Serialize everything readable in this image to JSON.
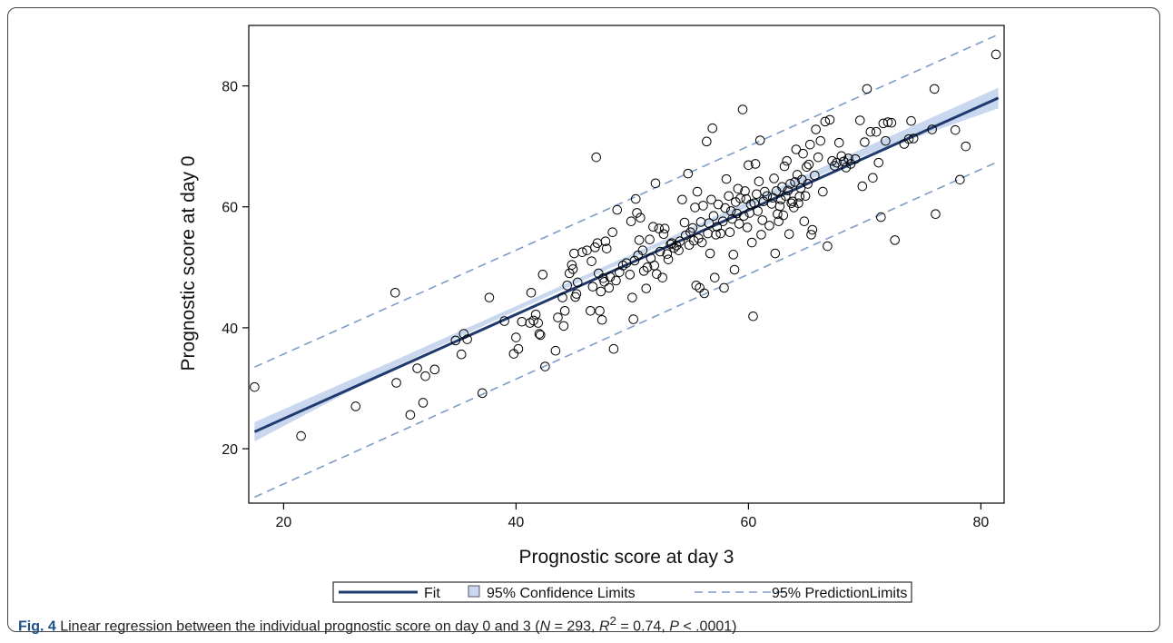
{
  "caption": {
    "fig_label": "Fig. 4",
    "text_before_n": " Linear regression between the individual prognostic score on day 0 and 3 (",
    "n_symbol": "N",
    "n_value": " = 293, ",
    "r_symbol": "R",
    "r_sup": "2",
    "r_value": " = 0.74, ",
    "p_symbol": "P",
    "p_value": " < .0001)"
  },
  "colors": {
    "fit_line": "#1f3a6e",
    "confidence_band": "#c9d8ee",
    "prediction_line": "#7e9cc9",
    "marker_stroke": "#000000"
  },
  "chart_data": {
    "type": "scatter",
    "xlabel": "Prognostic score at day 3",
    "ylabel": "Prognostic score at day 0",
    "xlim": [
      17,
      82
    ],
    "ylim": [
      11,
      90
    ],
    "xticks": [
      20,
      40,
      60,
      80
    ],
    "yticks": [
      20,
      40,
      60,
      80
    ],
    "grid": false,
    "legend_position": "bottom",
    "legend": [
      {
        "name": "Fit",
        "style": "solid-line"
      },
      {
        "name": "95% Confidence Limits",
        "style": "band"
      },
      {
        "name": "95% PredictionLimits",
        "style": "dashed-line"
      }
    ],
    "fit": {
      "x": [
        17.5,
        81.5
      ],
      "y": [
        22.8,
        78.0
      ]
    },
    "confidence_band": {
      "x": [
        17.5,
        30,
        40,
        50,
        55,
        60,
        70,
        81.5
      ],
      "lower": [
        21.2,
        33.9,
        42.8,
        51.5,
        55.8,
        60.0,
        68.5,
        76.3
      ],
      "upper": [
        24.4,
        35.0,
        43.6,
        52.2,
        56.5,
        60.9,
        69.8,
        79.7
      ]
    },
    "prediction_upper": {
      "x": [
        17.5,
        81.5
      ],
      "y": [
        33.5,
        88.5
      ]
    },
    "prediction_lower": {
      "x": [
        17.5,
        81.5
      ],
      "y": [
        12.0,
        67.5
      ]
    },
    "points": [
      [
        17.5,
        30.2
      ],
      [
        21.5,
        22.1
      ],
      [
        26.2,
        27.0
      ],
      [
        29.6,
        45.8
      ],
      [
        29.7,
        30.9
      ],
      [
        30.9,
        25.6
      ],
      [
        31.5,
        33.3
      ],
      [
        32.0,
        27.6
      ],
      [
        32.2,
        32.0
      ],
      [
        33.0,
        33.1
      ],
      [
        34.8,
        37.9
      ],
      [
        35.3,
        35.6
      ],
      [
        35.5,
        39.0
      ],
      [
        35.8,
        38.1
      ],
      [
        37.1,
        29.2
      ],
      [
        37.7,
        45.0
      ],
      [
        39.0,
        41.1
      ],
      [
        39.8,
        35.7
      ],
      [
        40.0,
        38.4
      ],
      [
        40.2,
        36.5
      ],
      [
        40.5,
        41.0
      ],
      [
        41.2,
        40.8
      ],
      [
        41.3,
        45.8
      ],
      [
        41.5,
        41.2
      ],
      [
        41.7,
        42.2
      ],
      [
        41.9,
        40.8
      ],
      [
        42.0,
        39.0
      ],
      [
        42.1,
        38.8
      ],
      [
        42.3,
        48.8
      ],
      [
        42.5,
        33.6
      ],
      [
        43.4,
        36.2
      ],
      [
        43.6,
        41.7
      ],
      [
        44.0,
        45.0
      ],
      [
        44.1,
        40.3
      ],
      [
        44.2,
        42.8
      ],
      [
        44.4,
        47.0
      ],
      [
        44.6,
        49.0
      ],
      [
        44.8,
        50.4
      ],
      [
        44.9,
        49.7
      ],
      [
        45.0,
        52.3
      ],
      [
        45.1,
        45.1
      ],
      [
        45.2,
        45.6
      ],
      [
        45.3,
        47.5
      ],
      [
        45.7,
        52.5
      ],
      [
        46.1,
        52.8
      ],
      [
        46.4,
        42.8
      ],
      [
        46.5,
        51.0
      ],
      [
        46.6,
        46.8
      ],
      [
        46.8,
        53.3
      ],
      [
        46.9,
        68.2
      ],
      [
        47.0,
        54.0
      ],
      [
        47.1,
        49.0
      ],
      [
        47.2,
        42.8
      ],
      [
        47.3,
        46.0
      ],
      [
        47.4,
        41.3
      ],
      [
        47.5,
        48.2
      ],
      [
        47.6,
        47.6
      ],
      [
        47.7,
        54.3
      ],
      [
        47.8,
        53.1
      ],
      [
        48.0,
        46.6
      ],
      [
        48.1,
        48.4
      ],
      [
        48.3,
        55.8
      ],
      [
        48.4,
        36.5
      ],
      [
        48.6,
        47.8
      ],
      [
        48.7,
        59.5
      ],
      [
        48.9,
        49.2
      ],
      [
        49.2,
        50.3
      ],
      [
        49.5,
        50.7
      ],
      [
        49.8,
        48.8
      ],
      [
        49.9,
        57.6
      ],
      [
        50.0,
        45.0
      ],
      [
        50.1,
        41.4
      ],
      [
        50.2,
        51.1
      ],
      [
        50.3,
        61.3
      ],
      [
        50.4,
        59.0
      ],
      [
        50.5,
        52.0
      ],
      [
        50.6,
        54.5
      ],
      [
        50.7,
        58.2
      ],
      [
        50.9,
        52.8
      ],
      [
        51.0,
        49.4
      ],
      [
        51.2,
        46.5
      ],
      [
        51.3,
        50.0
      ],
      [
        51.5,
        54.6
      ],
      [
        51.6,
        51.5
      ],
      [
        51.8,
        56.7
      ],
      [
        51.9,
        50.3
      ],
      [
        52.0,
        63.9
      ],
      [
        52.1,
        48.9
      ],
      [
        52.3,
        56.4
      ],
      [
        52.4,
        52.6
      ],
      [
        52.6,
        48.3
      ],
      [
        52.7,
        55.5
      ],
      [
        52.8,
        56.4
      ],
      [
        53.0,
        52.2
      ],
      [
        53.1,
        51.3
      ],
      [
        53.3,
        53.8
      ],
      [
        53.4,
        54.0
      ],
      [
        53.6,
        53.2
      ],
      [
        53.8,
        53.6
      ],
      [
        54.0,
        52.8
      ],
      [
        54.1,
        54.3
      ],
      [
        54.3,
        61.2
      ],
      [
        54.5,
        57.4
      ],
      [
        54.6,
        55.3
      ],
      [
        54.8,
        65.5
      ],
      [
        54.9,
        53.7
      ],
      [
        55.0,
        55.8
      ],
      [
        55.2,
        56.5
      ],
      [
        55.3,
        54.4
      ],
      [
        55.4,
        59.9
      ],
      [
        55.5,
        47.0
      ],
      [
        55.6,
        62.5
      ],
      [
        55.7,
        54.8
      ],
      [
        55.8,
        46.6
      ],
      [
        55.9,
        57.5
      ],
      [
        56.0,
        54.1
      ],
      [
        56.1,
        60.2
      ],
      [
        56.2,
        45.7
      ],
      [
        56.4,
        70.8
      ],
      [
        56.5,
        55.6
      ],
      [
        56.6,
        57.3
      ],
      [
        56.7,
        52.3
      ],
      [
        56.8,
        61.2
      ],
      [
        56.9,
        73.0
      ],
      [
        57.0,
        58.5
      ],
      [
        57.1,
        48.3
      ],
      [
        57.2,
        55.4
      ],
      [
        57.3,
        56.7
      ],
      [
        57.4,
        60.4
      ],
      [
        57.6,
        55.6
      ],
      [
        57.8,
        57.6
      ],
      [
        57.9,
        46.6
      ],
      [
        58.0,
        59.8
      ],
      [
        58.1,
        64.6
      ],
      [
        58.3,
        61.8
      ],
      [
        58.4,
        55.8
      ],
      [
        58.5,
        59.3
      ],
      [
        58.6,
        58.0
      ],
      [
        58.7,
        52.1
      ],
      [
        58.8,
        49.6
      ],
      [
        58.9,
        60.8
      ],
      [
        59.0,
        58.9
      ],
      [
        59.1,
        63.0
      ],
      [
        59.2,
        57.2
      ],
      [
        59.3,
        61.4
      ],
      [
        59.5,
        76.1
      ],
      [
        59.6,
        58.5
      ],
      [
        59.7,
        62.6
      ],
      [
        59.8,
        61.3
      ],
      [
        59.9,
        56.6
      ],
      [
        60.0,
        66.9
      ],
      [
        60.1,
        59.0
      ],
      [
        60.2,
        60.4
      ],
      [
        60.3,
        54.1
      ],
      [
        60.4,
        41.9
      ],
      [
        60.5,
        60.6
      ],
      [
        60.6,
        67.1
      ],
      [
        60.7,
        62.1
      ],
      [
        60.8,
        59.3
      ],
      [
        60.9,
        64.2
      ],
      [
        61.0,
        71.0
      ],
      [
        61.1,
        55.4
      ],
      [
        61.2,
        57.8
      ],
      [
        61.3,
        60.9
      ],
      [
        61.4,
        62.5
      ],
      [
        61.6,
        61.8
      ],
      [
        61.8,
        56.9
      ],
      [
        62.0,
        60.5
      ],
      [
        62.1,
        61.5
      ],
      [
        62.2,
        64.7
      ],
      [
        62.3,
        52.3
      ],
      [
        62.4,
        62.6
      ],
      [
        62.5,
        58.8
      ],
      [
        62.6,
        57.6
      ],
      [
        62.7,
        60.1
      ],
      [
        62.8,
        61.2
      ],
      [
        62.9,
        63.3
      ],
      [
        63.0,
        58.6
      ],
      [
        63.1,
        66.7
      ],
      [
        63.2,
        61.8
      ],
      [
        63.3,
        67.6
      ],
      [
        63.4,
        62.7
      ],
      [
        63.5,
        55.5
      ],
      [
        63.6,
        63.8
      ],
      [
        63.7,
        60.6
      ],
      [
        63.8,
        60.9
      ],
      [
        63.9,
        59.9
      ],
      [
        64.0,
        64.1
      ],
      [
        64.1,
        69.5
      ],
      [
        64.2,
        65.3
      ],
      [
        64.3,
        60.6
      ],
      [
        64.4,
        61.7
      ],
      [
        64.5,
        63.1
      ],
      [
        64.6,
        64.5
      ],
      [
        64.7,
        68.8
      ],
      [
        64.8,
        57.6
      ],
      [
        64.9,
        61.8
      ],
      [
        65.0,
        66.6
      ],
      [
        65.1,
        63.8
      ],
      [
        65.2,
        67.0
      ],
      [
        65.3,
        70.3
      ],
      [
        65.4,
        55.4
      ],
      [
        65.5,
        56.2
      ],
      [
        65.7,
        65.2
      ],
      [
        65.8,
        72.8
      ],
      [
        66.0,
        68.2
      ],
      [
        66.2,
        70.9
      ],
      [
        66.4,
        62.5
      ],
      [
        66.6,
        74.1
      ],
      [
        66.8,
        53.5
      ],
      [
        67.0,
        74.4
      ],
      [
        67.2,
        67.6
      ],
      [
        67.4,
        66.8
      ],
      [
        67.6,
        67.3
      ],
      [
        67.8,
        70.6
      ],
      [
        68.0,
        68.4
      ],
      [
        68.2,
        67.5
      ],
      [
        68.4,
        66.5
      ],
      [
        68.6,
        68.0
      ],
      [
        68.8,
        67.1
      ],
      [
        69.2,
        67.9
      ],
      [
        69.6,
        74.3
      ],
      [
        69.8,
        63.4
      ],
      [
        70.0,
        70.7
      ],
      [
        70.2,
        79.5
      ],
      [
        70.5,
        72.4
      ],
      [
        70.7,
        64.8
      ],
      [
        71.0,
        72.4
      ],
      [
        71.2,
        67.3
      ],
      [
        71.4,
        58.3
      ],
      [
        71.6,
        73.8
      ],
      [
        71.8,
        70.9
      ],
      [
        72.0,
        74.0
      ],
      [
        72.3,
        73.9
      ],
      [
        72.6,
        54.5
      ],
      [
        73.4,
        70.4
      ],
      [
        73.8,
        71.2
      ],
      [
        74.0,
        74.2
      ],
      [
        74.2,
        71.3
      ],
      [
        75.8,
        72.8
      ],
      [
        76.0,
        79.5
      ],
      [
        76.1,
        58.8
      ],
      [
        77.8,
        72.7
      ],
      [
        78.2,
        64.5
      ],
      [
        78.7,
        70.0
      ],
      [
        81.3,
        85.2
      ]
    ]
  }
}
